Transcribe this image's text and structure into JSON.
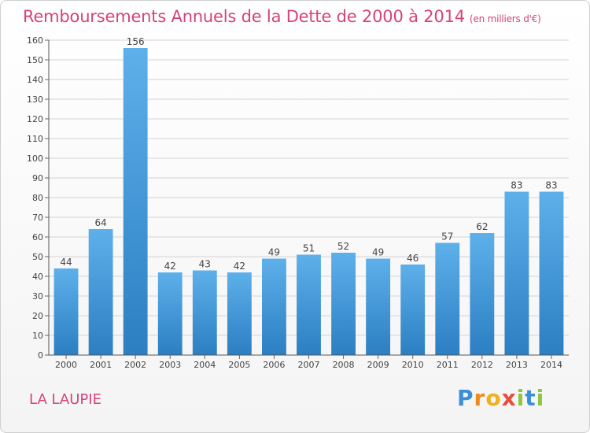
{
  "header": {
    "title": "Remboursements Annuels de la Dette de 2000 à 2014",
    "unit": "(en milliers d'€)"
  },
  "footer": {
    "commune": "LA LAUPIE",
    "brand": "Proxiti"
  },
  "colors": {
    "accent": "#d6437a",
    "bar_top": "#5eb0ea",
    "bar_bottom": "#2b7fc2"
  },
  "chart_data": {
    "type": "bar",
    "title": "Remboursements Annuels de la Dette de 2000 à 2014",
    "ylabel": "(en milliers d'€)",
    "xlabel": "",
    "categories": [
      "2000",
      "2001",
      "2002",
      "2003",
      "2004",
      "2005",
      "2006",
      "2007",
      "2008",
      "2009",
      "2010",
      "2011",
      "2012",
      "2013",
      "2014"
    ],
    "values": [
      44,
      64,
      156,
      42,
      43,
      42,
      49,
      51,
      52,
      49,
      46,
      57,
      62,
      83,
      83
    ],
    "ylim": [
      0,
      160
    ],
    "yticks": [
      0,
      10,
      20,
      30,
      40,
      50,
      60,
      70,
      80,
      90,
      100,
      110,
      120,
      130,
      140,
      150,
      160
    ],
    "grid": true,
    "data_labels": true
  }
}
